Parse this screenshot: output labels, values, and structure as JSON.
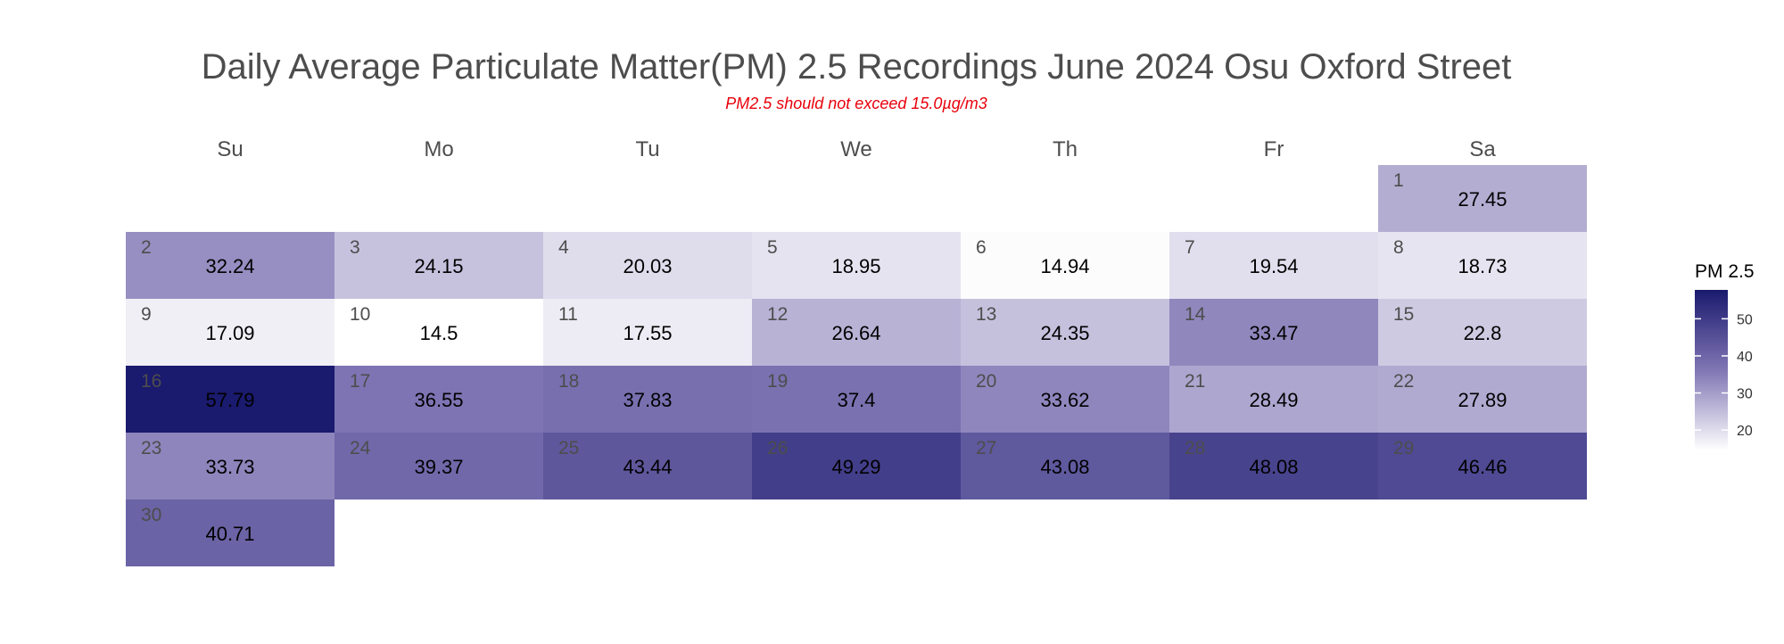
{
  "chart_data": {
    "type": "heatmap",
    "title": "Daily Average Particulate Matter(PM) 2.5 Recordings June 2024 Osu Oxford Street",
    "subtitle": "PM2.5 should not exceed 15.0µg/m3",
    "weekdays": [
      "Su",
      "Mo",
      "Tu",
      "We",
      "Th",
      "Fr",
      "Sa"
    ],
    "first_weekday_index": 6,
    "days": [
      {
        "day": "1",
        "value": 27.45
      },
      {
        "day": "2",
        "value": 32.24
      },
      {
        "day": "3",
        "value": 24.15
      },
      {
        "day": "4",
        "value": 20.03
      },
      {
        "day": "5",
        "value": 18.95
      },
      {
        "day": "6",
        "value": 14.94
      },
      {
        "day": "7",
        "value": 19.54
      },
      {
        "day": "8",
        "value": 18.73
      },
      {
        "day": "9",
        "value": 17.09
      },
      {
        "day": "10",
        "value": 14.5
      },
      {
        "day": "11",
        "value": 17.55
      },
      {
        "day": "12",
        "value": 26.64
      },
      {
        "day": "13",
        "value": 24.35
      },
      {
        "day": "14",
        "value": 33.47
      },
      {
        "day": "15",
        "value": 22.8
      },
      {
        "day": "16",
        "value": 57.79
      },
      {
        "day": "17",
        "value": 36.55
      },
      {
        "day": "18",
        "value": 37.83
      },
      {
        "day": "19",
        "value": 37.4
      },
      {
        "day": "20",
        "value": 33.62
      },
      {
        "day": "21",
        "value": 28.49
      },
      {
        "day": "22",
        "value": 27.89
      },
      {
        "day": "23",
        "value": 33.73
      },
      {
        "day": "24",
        "value": 39.37
      },
      {
        "day": "25",
        "value": 43.44
      },
      {
        "day": "26",
        "value": 49.29
      },
      {
        "day": "27",
        "value": 43.08
      },
      {
        "day": "28",
        "value": 48.08
      },
      {
        "day": "29",
        "value": 46.46
      },
      {
        "day": "30",
        "value": 40.71
      }
    ],
    "legend": {
      "title": "PM 2.5",
      "ticks": [
        20,
        30,
        40,
        50
      ],
      "range": [
        14.5,
        57.79
      ],
      "position": "right"
    },
    "colors": {
      "low": "#ffffff",
      "high": "#1a1a6e"
    },
    "grid": false
  }
}
